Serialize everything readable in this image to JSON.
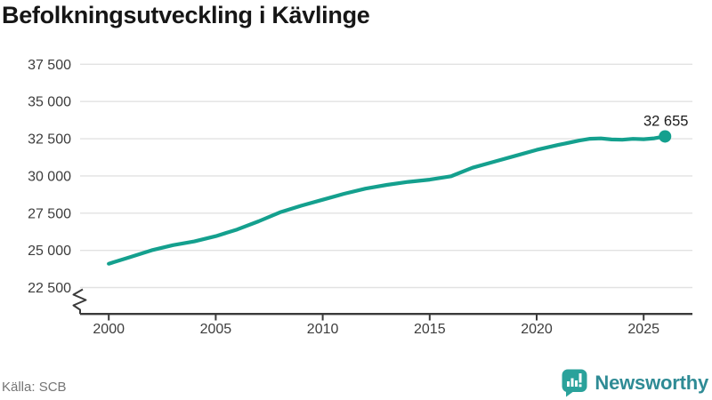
{
  "title": "Befolkningsutveckling i Kävlinge",
  "source": "Källa: SCB",
  "branding": {
    "name": "Newsworthy",
    "icon": "newsworthy-bar-chart-bubble-icon",
    "wordmark_color": "#2f8b95",
    "icon_color": "#2aa29b"
  },
  "colors": {
    "line": "#14a08e",
    "grid": "#e2e2e2",
    "axis": "#3a3a3a",
    "tick_label": "#3d3d3d",
    "end_label_text": "#1c1c1c",
    "background": "#ffffff"
  },
  "chart_data": {
    "type": "line",
    "title": "Befolkningsutveckling i Kävlinge",
    "xlabel": "",
    "ylabel": "",
    "grid": true,
    "y_axis_break": true,
    "xlim": [
      2000,
      2027.3
    ],
    "ylim": [
      22500,
      37500
    ],
    "yticks": [
      {
        "value": 22500,
        "label": "22 500"
      },
      {
        "value": 25000,
        "label": "25 000"
      },
      {
        "value": 27500,
        "label": "27 500"
      },
      {
        "value": 30000,
        "label": "30 000"
      },
      {
        "value": 32500,
        "label": "32 500"
      },
      {
        "value": 35000,
        "label": "35 000"
      },
      {
        "value": 37500,
        "label": "37 500"
      }
    ],
    "xticks": [
      {
        "value": 2000,
        "label": "2000"
      },
      {
        "value": 2005,
        "label": "2005"
      },
      {
        "value": 2010,
        "label": "2010"
      },
      {
        "value": 2015,
        "label": "2015"
      },
      {
        "value": 2020,
        "label": "2020"
      },
      {
        "value": 2025,
        "label": "2025"
      }
    ],
    "series": [
      {
        "x": [
          2000,
          2001,
          2002,
          2003,
          2004,
          2005,
          2006,
          2007,
          2008,
          2009,
          2010,
          2011,
          2012,
          2013,
          2014,
          2015,
          2016,
          2017,
          2018,
          2019,
          2020,
          2021,
          2022,
          2022.5,
          2023,
          2023.5,
          2024,
          2024.5,
          2025,
          2025.5,
          2026
        ],
        "values": [
          24100,
          24550,
          25000,
          25350,
          25600,
          25950,
          26400,
          26950,
          27550,
          28000,
          28400,
          28800,
          29150,
          29400,
          29600,
          29750,
          29980,
          30550,
          30950,
          31350,
          31750,
          32080,
          32380,
          32500,
          32520,
          32450,
          32430,
          32490,
          32470,
          32530,
          32655
        ]
      }
    ],
    "end_point": {
      "x": 2026,
      "value": 32655,
      "label": "32 655"
    }
  }
}
